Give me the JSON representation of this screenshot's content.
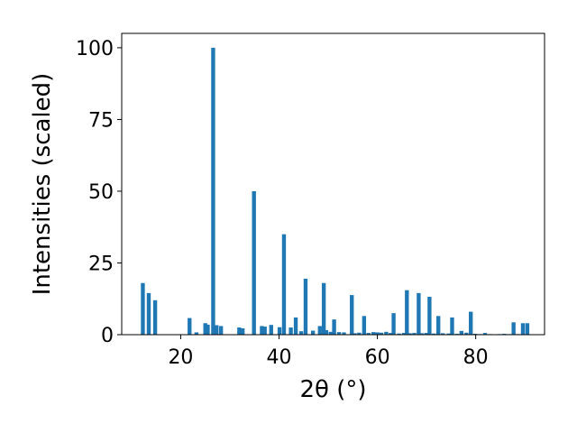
{
  "chart_data": {
    "type": "bar",
    "xlabel": "2θ (°)",
    "ylabel": "Intensities (scaled)",
    "xlim": [
      8,
      94
    ],
    "ylim": [
      0,
      105
    ],
    "xticks": [
      20,
      40,
      60,
      80
    ],
    "yticks": [
      0,
      25,
      50,
      75,
      100
    ],
    "bar_width": 0.8,
    "bar_color": "#1f77b4",
    "grid": false,
    "x": [
      12.3,
      13.5,
      14.8,
      21.8,
      23.2,
      25.0,
      25.5,
      26.6,
      27.3,
      28.2,
      31.9,
      32.6,
      34.9,
      36.5,
      37.1,
      38.4,
      40.1,
      41.0,
      42.4,
      43.4,
      44.5,
      45.4,
      46.9,
      48.3,
      49.1,
      49.6,
      50.5,
      51.2,
      52.2,
      53.2,
      54.8,
      55.4,
      56.3,
      57.3,
      58.2,
      59.2,
      60.0,
      60.8,
      61.8,
      62.7,
      63.3,
      64.4,
      65.4,
      66.0,
      66.6,
      67.5,
      68.4,
      69.1,
      70.0,
      70.6,
      71.5,
      72.4,
      73.3,
      74.5,
      75.2,
      76.2,
      77.1,
      78.1,
      79.0,
      79.9,
      80.9,
      81.9,
      82.9,
      83.8,
      84.8,
      85.8,
      86.8,
      87.7,
      88.6,
      89.6,
      90.5
    ],
    "values": [
      18,
      14.5,
      12,
      5.8,
      0.8,
      4,
      3.5,
      100,
      3.3,
      3,
      2.5,
      2.2,
      50,
      3,
      2.8,
      3.4,
      2.6,
      35,
      2.5,
      6,
      1.2,
      19.5,
      1.4,
      3,
      18,
      1.6,
      1,
      5.3,
      0.9,
      0.8,
      13.8,
      0.5,
      0.7,
      6.5,
      0.6,
      0.9,
      0.8,
      0.7,
      1,
      0.6,
      7.5,
      0.4,
      0.6,
      15.5,
      0.5,
      0.6,
      14.5,
      0.5,
      0.6,
      13.2,
      0.4,
      6.5,
      0.5,
      0.4,
      6,
      0.3,
      1.3,
      0.7,
      8,
      0.3,
      0.2,
      0.6,
      0.2,
      0.1,
      0.2,
      0.3,
      0.2,
      4.3,
      0.2,
      4,
      4
    ]
  }
}
